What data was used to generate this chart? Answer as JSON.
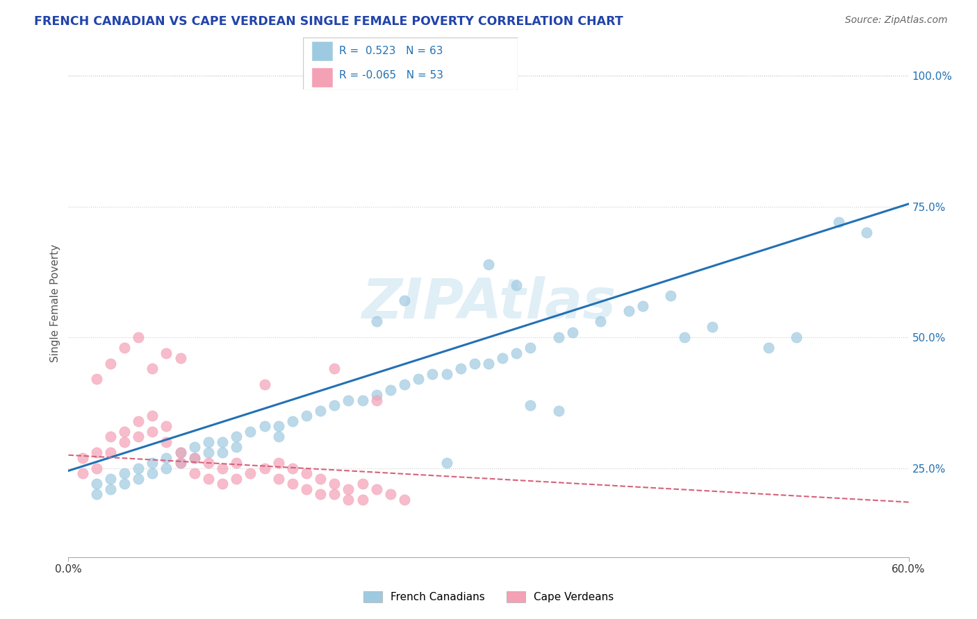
{
  "title": "FRENCH CANADIAN VS CAPE VERDEAN SINGLE FEMALE POVERTY CORRELATION CHART",
  "source": "Source: ZipAtlas.com",
  "ylabel": "Single Female Poverty",
  "xmin": 0.0,
  "xmax": 0.6,
  "ymin": 0.08,
  "ymax": 1.05,
  "y_ticks_right": [
    0.25,
    0.5,
    0.75,
    1.0
  ],
  "y_tick_labels_right": [
    "25.0%",
    "50.0%",
    "75.0%",
    "100.0%"
  ],
  "blue_R": 0.523,
  "blue_N": 63,
  "pink_R": -0.065,
  "pink_N": 53,
  "blue_color": "#9ecae1",
  "pink_color": "#f4a0b5",
  "blue_line_color": "#2171b5",
  "pink_line_color": "#d6617a",
  "legend_label_blue": "French Canadians",
  "legend_label_pink": "Cape Verdeans",
  "blue_trend_x0": 0.0,
  "blue_trend_y0": 0.245,
  "blue_trend_x1": 0.6,
  "blue_trend_y1": 0.755,
  "pink_trend_x0": 0.0,
  "pink_trend_y0": 0.275,
  "pink_trend_x1": 0.6,
  "pink_trend_y1": 0.185,
  "blue_scatter_x": [
    0.02,
    0.02,
    0.03,
    0.03,
    0.04,
    0.04,
    0.05,
    0.05,
    0.06,
    0.06,
    0.07,
    0.07,
    0.08,
    0.08,
    0.09,
    0.09,
    0.1,
    0.1,
    0.11,
    0.11,
    0.12,
    0.12,
    0.13,
    0.14,
    0.15,
    0.15,
    0.16,
    0.17,
    0.18,
    0.19,
    0.2,
    0.21,
    0.22,
    0.23,
    0.24,
    0.25,
    0.26,
    0.27,
    0.28,
    0.29,
    0.3,
    0.31,
    0.32,
    0.33,
    0.35,
    0.36,
    0.38,
    0.4,
    0.41,
    0.43,
    0.3,
    0.32,
    0.55,
    0.57,
    0.22,
    0.24,
    0.44,
    0.46,
    0.5,
    0.52,
    0.33,
    0.35,
    0.27
  ],
  "blue_scatter_y": [
    0.22,
    0.2,
    0.23,
    0.21,
    0.24,
    0.22,
    0.25,
    0.23,
    0.26,
    0.24,
    0.27,
    0.25,
    0.28,
    0.26,
    0.29,
    0.27,
    0.3,
    0.28,
    0.3,
    0.28,
    0.31,
    0.29,
    0.32,
    0.33,
    0.33,
    0.31,
    0.34,
    0.35,
    0.36,
    0.37,
    0.38,
    0.38,
    0.39,
    0.4,
    0.41,
    0.42,
    0.43,
    0.43,
    0.44,
    0.45,
    0.45,
    0.46,
    0.47,
    0.48,
    0.5,
    0.51,
    0.53,
    0.55,
    0.56,
    0.58,
    0.64,
    0.6,
    0.72,
    0.7,
    0.53,
    0.57,
    0.5,
    0.52,
    0.48,
    0.5,
    0.37,
    0.36,
    0.26
  ],
  "pink_scatter_x": [
    0.01,
    0.01,
    0.02,
    0.02,
    0.03,
    0.03,
    0.04,
    0.04,
    0.05,
    0.05,
    0.06,
    0.06,
    0.07,
    0.07,
    0.08,
    0.08,
    0.09,
    0.09,
    0.1,
    0.1,
    0.11,
    0.11,
    0.12,
    0.12,
    0.13,
    0.14,
    0.15,
    0.15,
    0.16,
    0.16,
    0.17,
    0.17,
    0.18,
    0.18,
    0.19,
    0.19,
    0.2,
    0.2,
    0.21,
    0.21,
    0.22,
    0.23,
    0.24,
    0.06,
    0.07,
    0.08,
    0.04,
    0.05,
    0.03,
    0.02,
    0.14,
    0.19,
    0.22
  ],
  "pink_scatter_y": [
    0.27,
    0.24,
    0.28,
    0.25,
    0.31,
    0.28,
    0.32,
    0.3,
    0.34,
    0.31,
    0.35,
    0.32,
    0.33,
    0.3,
    0.28,
    0.26,
    0.27,
    0.24,
    0.26,
    0.23,
    0.25,
    0.22,
    0.26,
    0.23,
    0.24,
    0.25,
    0.26,
    0.23,
    0.25,
    0.22,
    0.24,
    0.21,
    0.23,
    0.2,
    0.22,
    0.2,
    0.21,
    0.19,
    0.22,
    0.19,
    0.21,
    0.2,
    0.19,
    0.44,
    0.47,
    0.46,
    0.48,
    0.5,
    0.45,
    0.42,
    0.41,
    0.44,
    0.38
  ]
}
